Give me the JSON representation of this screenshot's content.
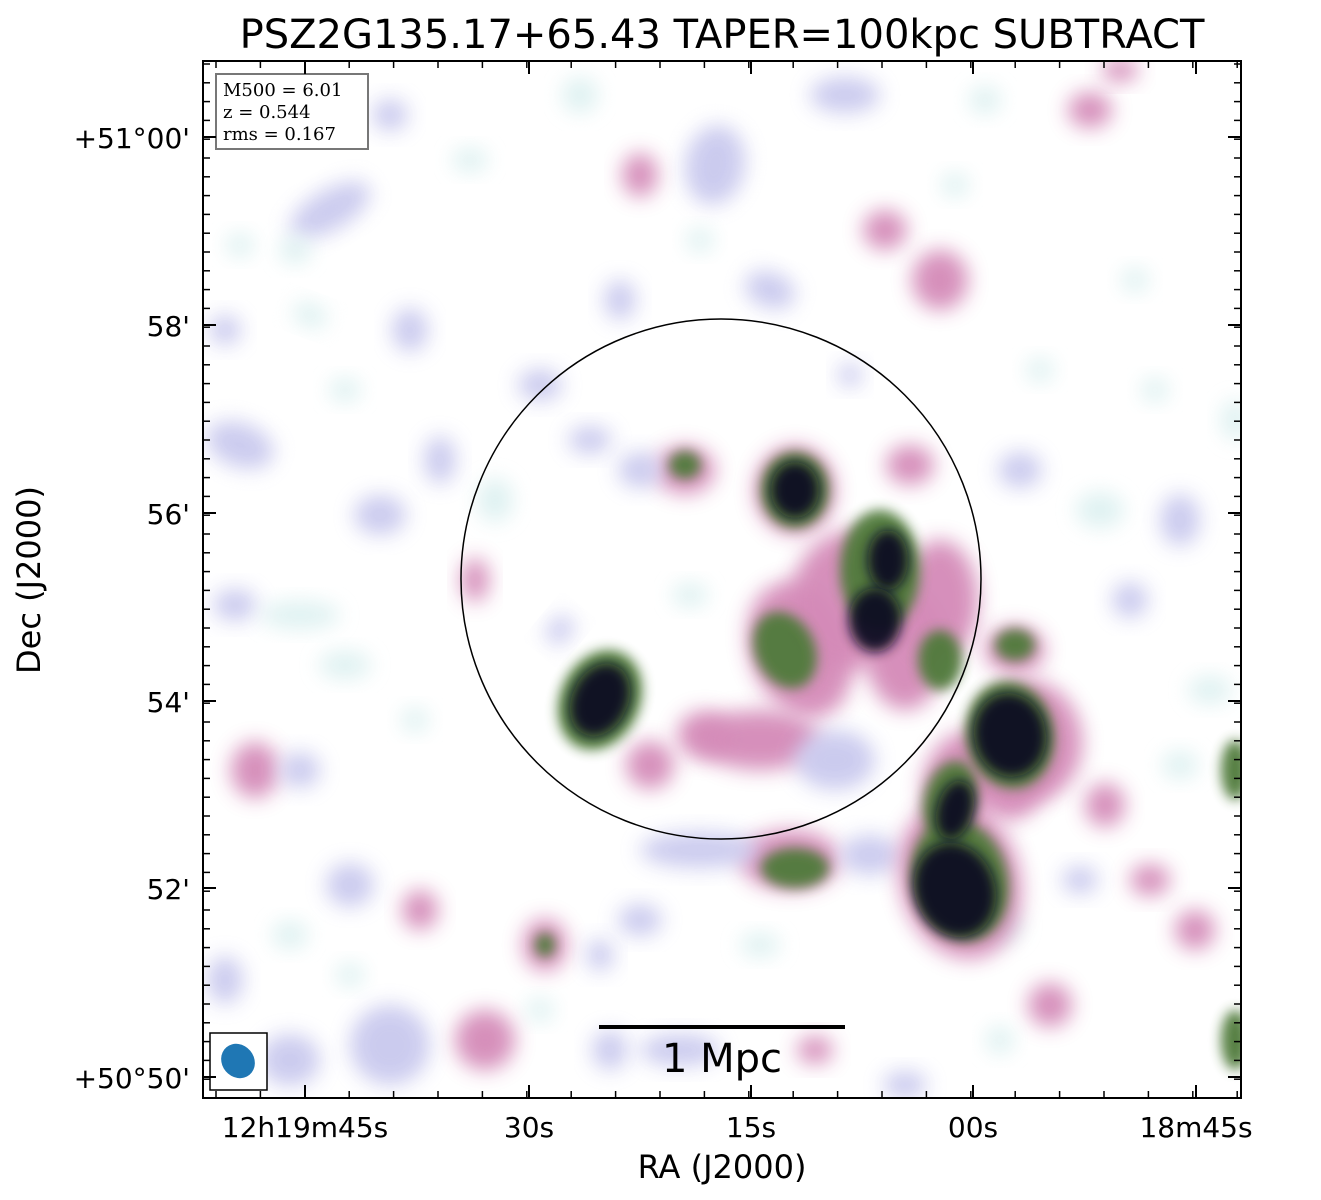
{
  "chart_data": {
    "type": "heatmap",
    "title": "PSZ2G135.17+65.43 TAPER=100kpc SUBTRACT",
    "xlabel": "RA (J2000)",
    "ylabel": "Dec (J2000)",
    "x_ticks": [
      "12h19m45s",
      "30s",
      "15s",
      "00s",
      "18m45s"
    ],
    "y_ticks": [
      "+51°00'",
      "58'",
      "56'",
      "54'",
      "52'",
      "+50°50'"
    ],
    "info_box": {
      "mass": "M500 = 6.01",
      "redshift": "z = 0.544",
      "rms": "rms = 0.167"
    },
    "scale_bar": "1 Mpc",
    "colormap": [
      "#ffffff",
      "#d9efef",
      "#c9c9ee",
      "#d48ab8",
      "#4f7a3a",
      "#0b0b22"
    ],
    "beam_color": "#1f77b4"
  }
}
